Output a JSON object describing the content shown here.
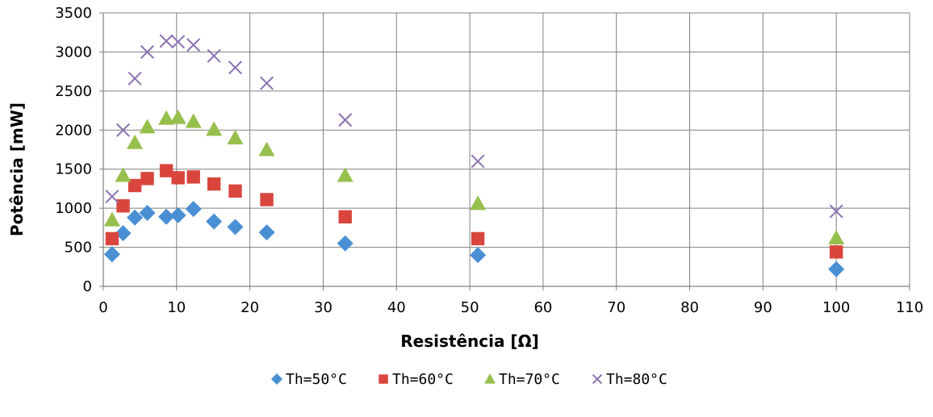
{
  "chart_data": {
    "type": "scatter",
    "xlabel": "Resistência [Ω]",
    "ylabel": "Potência [mW]",
    "xlim": [
      0,
      110
    ],
    "ylim": [
      0,
      3500
    ],
    "xticks": [
      0,
      10,
      20,
      30,
      40,
      50,
      60,
      70,
      80,
      90,
      100,
      110
    ],
    "yticks": [
      0,
      500,
      1000,
      1500,
      2000,
      2500,
      3000,
      3500
    ],
    "grid": true,
    "legend": "bottom",
    "series": [
      {
        "name": "Th=50°C",
        "marker": "diamond",
        "color": "#4a8fd4",
        "x": [
          1.2,
          2.7,
          4.3,
          6.0,
          8.6,
          10.2,
          12.3,
          15.1,
          18.0,
          22.3,
          33.0,
          51.1,
          100.0
        ],
        "y": [
          410,
          680,
          880,
          940,
          890,
          910,
          990,
          830,
          760,
          690,
          550,
          400,
          220
        ]
      },
      {
        "name": "Th=60°C",
        "marker": "square",
        "color": "#d9453d",
        "x": [
          1.2,
          2.7,
          4.3,
          6.0,
          8.6,
          10.2,
          12.3,
          15.1,
          18.0,
          22.3,
          33.0,
          51.1,
          100.0
        ],
        "y": [
          610,
          1030,
          1290,
          1380,
          1480,
          1390,
          1400,
          1310,
          1220,
          1110,
          890,
          610,
          440
        ]
      },
      {
        "name": "Th=70°C",
        "marker": "triangle",
        "color": "#97bf4d",
        "x": [
          1.2,
          2.7,
          4.3,
          6.0,
          8.6,
          10.2,
          12.3,
          15.1,
          18.0,
          22.3,
          33.0,
          51.1,
          100.0
        ],
        "y": [
          850,
          1420,
          1840,
          2040,
          2150,
          2160,
          2110,
          2010,
          1900,
          1750,
          1420,
          1060,
          620
        ]
      },
      {
        "name": "Th=80°C",
        "marker": "x",
        "color": "#8b72b1",
        "x": [
          1.2,
          2.7,
          4.3,
          6.0,
          8.6,
          10.2,
          12.3,
          15.1,
          18.0,
          22.3,
          33.0,
          51.1,
          100.0
        ],
        "y": [
          1150,
          2000,
          2660,
          3000,
          3140,
          3130,
          3090,
          2950,
          2800,
          2600,
          2130,
          1600,
          960
        ]
      }
    ]
  }
}
